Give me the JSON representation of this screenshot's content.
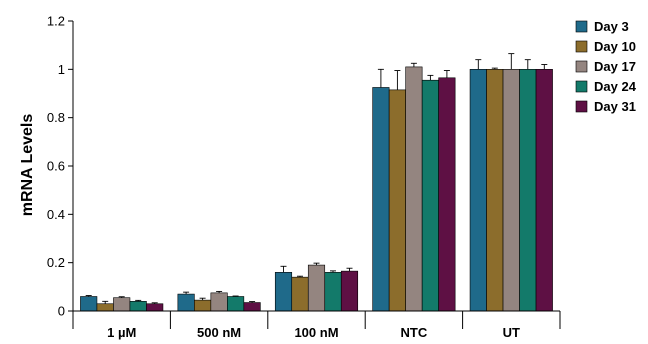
{
  "chart_data": {
    "type": "bar",
    "ylabel": "mRNA Levels",
    "xlabel": "",
    "ylim": [
      0,
      1.2
    ],
    "yticks": [
      "0",
      "0.2",
      "0.4",
      "0.6",
      "0.8",
      "1",
      "1.2"
    ],
    "categories": [
      "1 µM",
      "500 nM",
      "100 nM",
      "NTC",
      "UT"
    ],
    "legend_position": "right",
    "grid": false,
    "series": [
      {
        "name": "Day 3",
        "color": "#1f6a8a",
        "values": [
          0.06,
          0.07,
          0.16,
          0.925,
          1.0
        ],
        "errors": [
          0.004,
          0.008,
          0.025,
          0.075,
          0.04
        ]
      },
      {
        "name": "Day 10",
        "color": "#8c6d2c",
        "values": [
          0.03,
          0.045,
          0.14,
          0.915,
          1.0
        ],
        "errors": [
          0.01,
          0.008,
          0.004,
          0.08,
          0.005
        ]
      },
      {
        "name": "Day 17",
        "color": "#948580",
        "values": [
          0.055,
          0.075,
          0.19,
          1.01,
          1.0
        ],
        "errors": [
          0.004,
          0.006,
          0.008,
          0.015,
          0.065
        ]
      },
      {
        "name": "Day 24",
        "color": "#137a6a",
        "values": [
          0.04,
          0.06,
          0.16,
          0.955,
          1.0
        ],
        "errors": [
          0.004,
          0.002,
          0.006,
          0.02,
          0.04
        ]
      },
      {
        "name": "Day 31",
        "color": "#5e1044",
        "values": [
          0.03,
          0.035,
          0.165,
          0.965,
          1.0
        ],
        "errors": [
          0.004,
          0.004,
          0.012,
          0.03,
          0.02
        ]
      }
    ]
  }
}
